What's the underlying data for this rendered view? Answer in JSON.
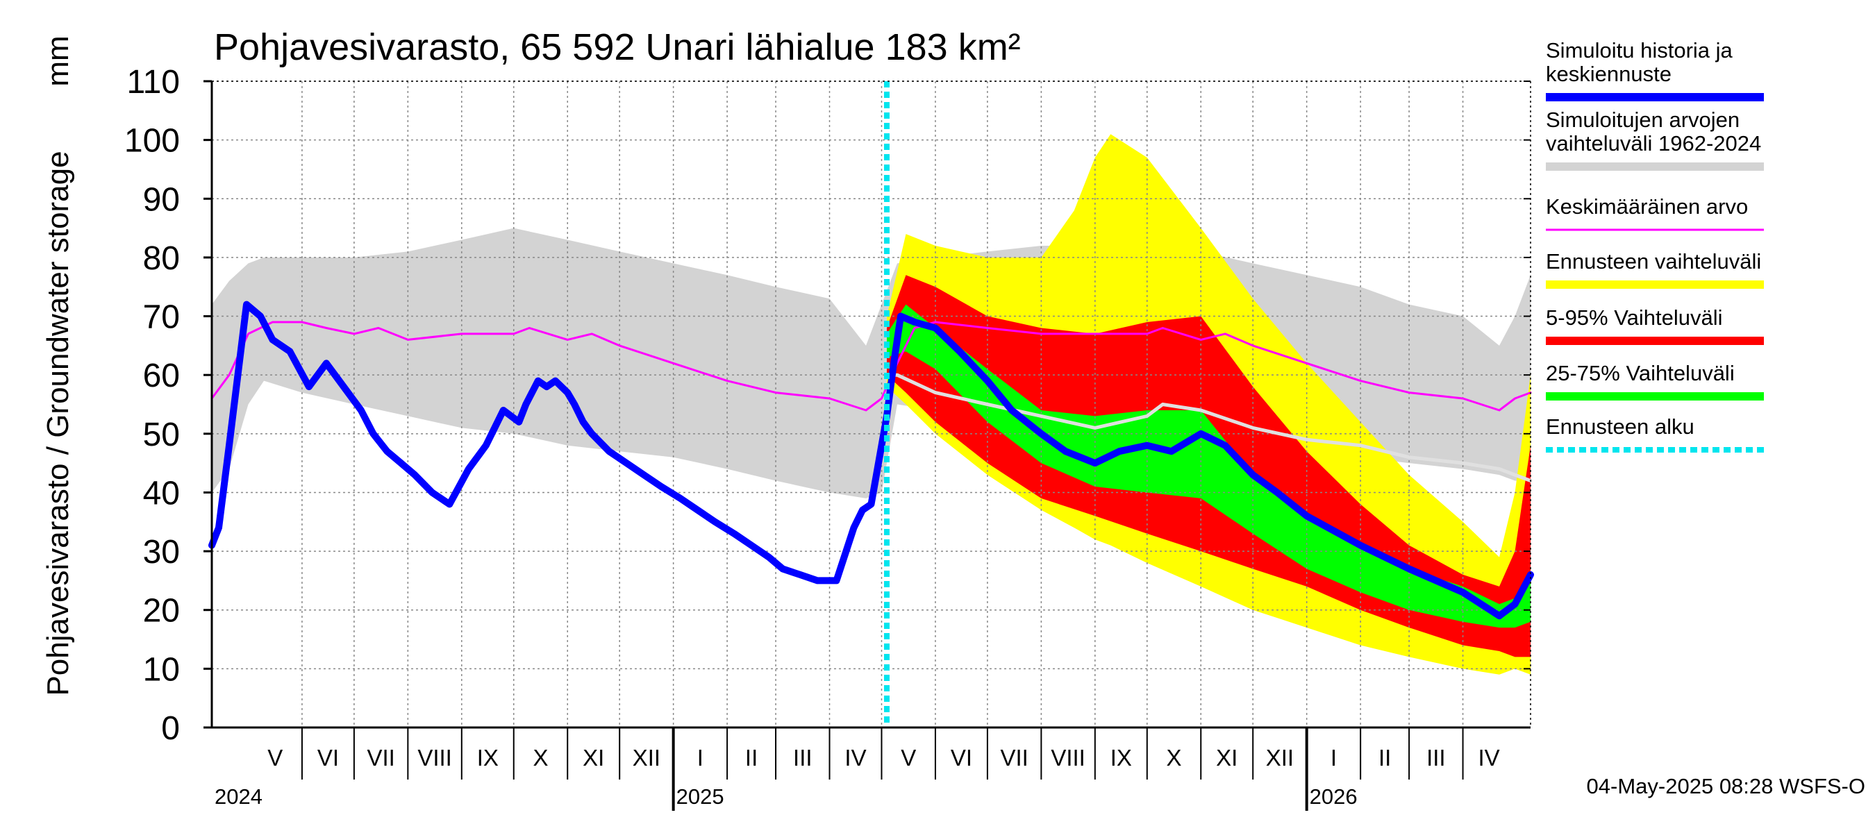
{
  "chart_data": {
    "type": "area",
    "title": "Pohjavesivarasto, 65 592 Unari lähialue 183 km²",
    "ylabel": "Pohjavesivarasto / Groundwater storage",
    "yunit": "mm",
    "ylim": [
      0,
      110
    ],
    "yticks": [
      0,
      10,
      20,
      30,
      40,
      50,
      60,
      70,
      80,
      90,
      100,
      110
    ],
    "xlim": [
      "2024-04-10",
      "2026-05-10"
    ],
    "grid": true,
    "legend_position": "right",
    "forecast_start": "2025-05-04",
    "months": [
      {
        "label": "V",
        "start": "2024-05-01",
        "end": "2024-06-01"
      },
      {
        "label": "VI",
        "start": "2024-06-01",
        "end": "2024-07-01"
      },
      {
        "label": "VII",
        "start": "2024-07-01",
        "end": "2024-08-01"
      },
      {
        "label": "VIII",
        "start": "2024-08-01",
        "end": "2024-09-01"
      },
      {
        "label": "IX",
        "start": "2024-09-01",
        "end": "2024-10-01"
      },
      {
        "label": "X",
        "start": "2024-10-01",
        "end": "2024-11-01"
      },
      {
        "label": "XI",
        "start": "2024-11-01",
        "end": "2024-12-01"
      },
      {
        "label": "XII",
        "start": "2024-12-01",
        "end": "2025-01-01"
      },
      {
        "label": "I",
        "start": "2025-01-01",
        "end": "2025-02-01"
      },
      {
        "label": "II",
        "start": "2025-02-01",
        "end": "2025-03-01"
      },
      {
        "label": "III",
        "start": "2025-03-01",
        "end": "2025-04-01"
      },
      {
        "label": "IV",
        "start": "2025-04-01",
        "end": "2025-05-01"
      },
      {
        "label": "V",
        "start": "2025-05-01",
        "end": "2025-06-01"
      },
      {
        "label": "VI",
        "start": "2025-06-01",
        "end": "2025-07-01"
      },
      {
        "label": "VII",
        "start": "2025-07-01",
        "end": "2025-08-01"
      },
      {
        "label": "VIII",
        "start": "2025-08-01",
        "end": "2025-09-01"
      },
      {
        "label": "IX",
        "start": "2025-09-01",
        "end": "2025-10-01"
      },
      {
        "label": "X",
        "start": "2025-10-01",
        "end": "2025-11-01"
      },
      {
        "label": "XI",
        "start": "2025-11-01",
        "end": "2025-12-01"
      },
      {
        "label": "XII",
        "start": "2025-12-01",
        "end": "2026-01-01"
      },
      {
        "label": "I",
        "start": "2026-01-01",
        "end": "2026-02-01"
      },
      {
        "label": "II",
        "start": "2026-02-01",
        "end": "2026-03-01"
      },
      {
        "label": "III",
        "start": "2026-03-01",
        "end": "2026-04-01"
      },
      {
        "label": "IV",
        "start": "2026-04-01",
        "end": "2026-05-01"
      }
    ],
    "years": [
      {
        "label": "2024",
        "date": "2024-04-10"
      },
      {
        "label": "2025",
        "date": "2025-01-01"
      },
      {
        "label": "2026",
        "date": "2026-01-01"
      }
    ],
    "year_boundaries": [
      "2025-01-01",
      "2026-01-01"
    ],
    "legend": [
      {
        "label": "Simuloitu historia ja keskiennuste",
        "lines": [
          "Simuloitu historia ja",
          "keskiennuste"
        ],
        "color": "#0000ff",
        "style": "thick"
      },
      {
        "label": "Simuloitujen arvojen vaihteluväli 1962-2024",
        "lines": [
          "Simuloitujen arvojen",
          "vaihteluväli 1962-2024"
        ],
        "color": "#d3d3d3",
        "style": "thick"
      },
      {
        "label": "Keskimääräinen arvo",
        "lines": [
          "Keskimääräinen arvo"
        ],
        "color": "#ff00ff",
        "style": "thin"
      },
      {
        "label": "Ennusteen vaihteluväli",
        "lines": [
          "Ennusteen vaihteluväli"
        ],
        "color": "#ffff00",
        "style": "thick"
      },
      {
        "label": "5-95% Vaihteluväli",
        "lines": [
          "5-95% Vaihteluväli"
        ],
        "color": "#ff0000",
        "style": "thick"
      },
      {
        "label": "25-75% Vaihteluväli",
        "lines": [
          "25-75% Vaihteluväli"
        ],
        "color": "#00ff00",
        "style": "thick"
      },
      {
        "label": "Ennusteen alku",
        "lines": [
          "Ennusteen alku"
        ],
        "color": "#00e5ee",
        "style": "dotted"
      }
    ],
    "series": [
      {
        "name": "Simuloitujen arvojen vaihteluväli 1962-2024",
        "kind": "band",
        "color": "#d3d3d3",
        "x": [
          "2024-04-10",
          "2024-04-20",
          "2024-05-01",
          "2024-05-10",
          "2024-06-01",
          "2024-07-01",
          "2024-08-01",
          "2024-09-01",
          "2024-10-01",
          "2024-11-01",
          "2024-12-01",
          "2025-01-01",
          "2025-02-01",
          "2025-03-01",
          "2025-04-01",
          "2025-04-22",
          "2025-05-01",
          "2025-05-10",
          "2025-06-01",
          "2025-07-01",
          "2025-08-01",
          "2025-09-01",
          "2025-10-01",
          "2025-11-01",
          "2025-12-01",
          "2026-01-01",
          "2026-02-01",
          "2026-03-01",
          "2026-04-01",
          "2026-04-22",
          "2026-05-01",
          "2026-05-10"
        ],
        "low": [
          40,
          44,
          55,
          59,
          57,
          55,
          53,
          51,
          50,
          48,
          47,
          46,
          44,
          42,
          40,
          39,
          40,
          55,
          54,
          53,
          52,
          51,
          50,
          49,
          48,
          47,
          46,
          45,
          44,
          43,
          42,
          42
        ],
        "high": [
          72,
          76,
          79,
          80,
          80,
          80,
          81,
          83,
          85,
          83,
          81,
          79,
          77,
          75,
          73,
          65,
          72,
          79,
          80,
          81,
          82,
          82,
          82,
          81,
          79,
          77,
          75,
          72,
          70,
          65,
          70,
          77
        ]
      },
      {
        "name": "Ennusteen vaihteluväli",
        "kind": "band",
        "color": "#ffff00",
        "x": [
          "2025-05-04",
          "2025-05-15",
          "2025-06-01",
          "2025-07-01",
          "2025-08-01",
          "2025-08-20",
          "2025-09-01",
          "2025-09-10",
          "2025-10-01",
          "2025-11-01",
          "2025-12-01",
          "2026-01-01",
          "2026-02-01",
          "2026-03-01",
          "2026-04-01",
          "2026-04-22",
          "2026-05-01",
          "2026-05-10"
        ],
        "low": [
          58,
          55,
          50,
          43,
          37,
          34,
          32,
          31,
          28,
          24,
          20,
          17,
          14,
          12,
          10,
          9,
          10,
          9
        ],
        "high": [
          70,
          84,
          82,
          80,
          80,
          88,
          97,
          101,
          97,
          85,
          73,
          62,
          52,
          43,
          35,
          29,
          40,
          60
        ]
      },
      {
        "name": "5-95% Vaihteluväli",
        "kind": "band",
        "color": "#ff0000",
        "x": [
          "2025-05-04",
          "2025-05-15",
          "2025-06-01",
          "2025-07-01",
          "2025-08-01",
          "2025-09-01",
          "2025-10-01",
          "2025-11-01",
          "2025-12-01",
          "2026-01-01",
          "2026-02-01",
          "2026-03-01",
          "2026-04-01",
          "2026-04-22",
          "2026-05-01",
          "2026-05-10"
        ],
        "low": [
          60,
          57,
          52,
          45,
          39,
          36,
          33,
          30,
          27,
          24,
          20,
          17,
          14,
          13,
          12,
          12
        ],
        "high": [
          68,
          77,
          75,
          70,
          68,
          67,
          69,
          70,
          58,
          47,
          38,
          31,
          26,
          24,
          30,
          48
        ]
      },
      {
        "name": "25-75% Vaihteluväli",
        "kind": "band",
        "color": "#00ff00",
        "x": [
          "2025-05-04",
          "2025-05-15",
          "2025-06-01",
          "2025-07-01",
          "2025-08-01",
          "2025-09-01",
          "2025-10-01",
          "2025-11-01",
          "2025-12-01",
          "2026-01-01",
          "2026-02-01",
          "2026-03-01",
          "2026-04-01",
          "2026-04-22",
          "2026-05-01",
          "2026-05-10"
        ],
        "low": [
          63,
          64,
          61,
          52,
          45,
          41,
          40,
          39,
          33,
          27,
          23,
          20,
          18,
          17,
          17,
          18
        ],
        "high": [
          67,
          72,
          68,
          61,
          54,
          53,
          54,
          54,
          43,
          36,
          31,
          27,
          24,
          21,
          22,
          25
        ]
      },
      {
        "name": "Simuloitu historia ja keskiennuste",
        "kind": "line",
        "color": "#0000ff",
        "width": 10,
        "x": [
          "2024-04-10",
          "2024-04-14",
          "2024-04-20",
          "2024-04-25",
          "2024-04-30",
          "2024-05-08",
          "2024-05-15",
          "2024-05-25",
          "2024-06-05",
          "2024-06-15",
          "2024-06-25",
          "2024-07-05",
          "2024-07-12",
          "2024-07-20",
          "2024-07-28",
          "2024-08-05",
          "2024-08-15",
          "2024-08-25",
          "2024-09-05",
          "2024-09-15",
          "2024-09-25",
          "2024-10-04",
          "2024-10-08",
          "2024-10-15",
          "2024-10-20",
          "2024-10-25",
          "2024-11-01",
          "2024-11-05",
          "2024-11-10",
          "2024-11-15",
          "2024-11-25",
          "2024-12-05",
          "2024-12-15",
          "2024-12-25",
          "2025-01-05",
          "2025-01-15",
          "2025-01-25",
          "2025-02-05",
          "2025-02-15",
          "2025-02-25",
          "2025-03-05",
          "2025-03-15",
          "2025-03-25",
          "2025-04-05",
          "2025-04-15",
          "2025-04-20",
          "2025-04-25",
          "2025-05-01",
          "2025-05-04",
          "2025-05-08",
          "2025-05-12",
          "2025-05-20",
          "2025-06-01",
          "2025-06-15",
          "2025-07-01",
          "2025-07-15",
          "2025-08-01",
          "2025-08-15",
          "2025-09-01",
          "2025-09-15",
          "2025-10-01",
          "2025-10-15",
          "2025-11-01",
          "2025-11-15",
          "2025-12-01",
          "2025-12-15",
          "2026-01-01",
          "2026-02-01",
          "2026-03-01",
          "2026-04-01",
          "2026-04-22",
          "2026-05-01",
          "2026-05-10"
        ],
        "y": [
          31,
          34,
          48,
          60,
          72,
          70,
          66,
          64,
          58,
          62,
          58,
          54,
          50,
          47,
          45,
          43,
          40,
          38,
          44,
          48,
          54,
          52,
          55,
          59,
          58,
          59,
          57,
          55,
          52,
          50,
          47,
          45,
          43,
          41,
          39,
          37,
          35,
          33,
          31,
          29,
          27,
          26,
          25,
          25,
          34,
          37,
          38,
          48,
          53,
          62,
          70,
          69,
          68,
          64,
          59,
          54,
          50,
          47,
          45,
          47,
          48,
          47,
          50,
          48,
          43,
          40,
          36,
          31,
          27,
          23,
          19,
          21,
          26
        ]
      },
      {
        "name": "Mediaani",
        "kind": "line",
        "color": "#e0e0e0",
        "width": 5,
        "x": [
          "2025-05-04",
          "2025-05-10",
          "2025-06-01",
          "2025-07-01",
          "2025-08-01",
          "2025-09-01",
          "2025-10-01",
          "2025-10-10",
          "2025-11-01",
          "2025-12-01",
          "2026-01-01",
          "2026-02-01",
          "2026-03-01",
          "2026-04-01",
          "2026-04-22",
          "2026-05-01",
          "2026-05-10"
        ],
        "y": [
          60,
          60,
          57,
          55,
          53,
          51,
          53,
          55,
          54,
          51,
          49,
          48,
          46,
          45,
          44,
          43,
          42
        ]
      },
      {
        "name": "Keskimääräinen arvo",
        "kind": "line",
        "color": "#ff00ff",
        "width": 3,
        "x": [
          "2024-04-10",
          "2024-04-20",
          "2024-05-01",
          "2024-05-15",
          "2024-06-01",
          "2024-06-15",
          "2024-07-01",
          "2024-07-15",
          "2024-08-01",
          "2024-09-01",
          "2024-10-01",
          "2024-10-10",
          "2024-11-01",
          "2024-11-15",
          "2024-12-01",
          "2025-01-01",
          "2025-02-01",
          "2025-03-01",
          "2025-04-01",
          "2025-04-22",
          "2025-05-01",
          "2025-05-04",
          "2025-05-10",
          "2025-05-20",
          "2025-06-01",
          "2025-07-01",
          "2025-08-01",
          "2025-09-01",
          "2025-10-01",
          "2025-10-10",
          "2025-11-01",
          "2025-11-15",
          "2025-12-01",
          "2026-01-01",
          "2026-02-01",
          "2026-03-01",
          "2026-04-01",
          "2026-04-22",
          "2026-05-01",
          "2026-05-10"
        ],
        "y": [
          56,
          60,
          67,
          69,
          69,
          68,
          67,
          68,
          66,
          67,
          67,
          68,
          66,
          67,
          65,
          62,
          59,
          57,
          56,
          54,
          56,
          58,
          62,
          68,
          69,
          68,
          67,
          67,
          67,
          68,
          66,
          67,
          65,
          62,
          59,
          57,
          56,
          54,
          56,
          57
        ]
      }
    ]
  },
  "footer": {
    "timestamp": "04-May-2025 08:28 WSFS-O"
  }
}
